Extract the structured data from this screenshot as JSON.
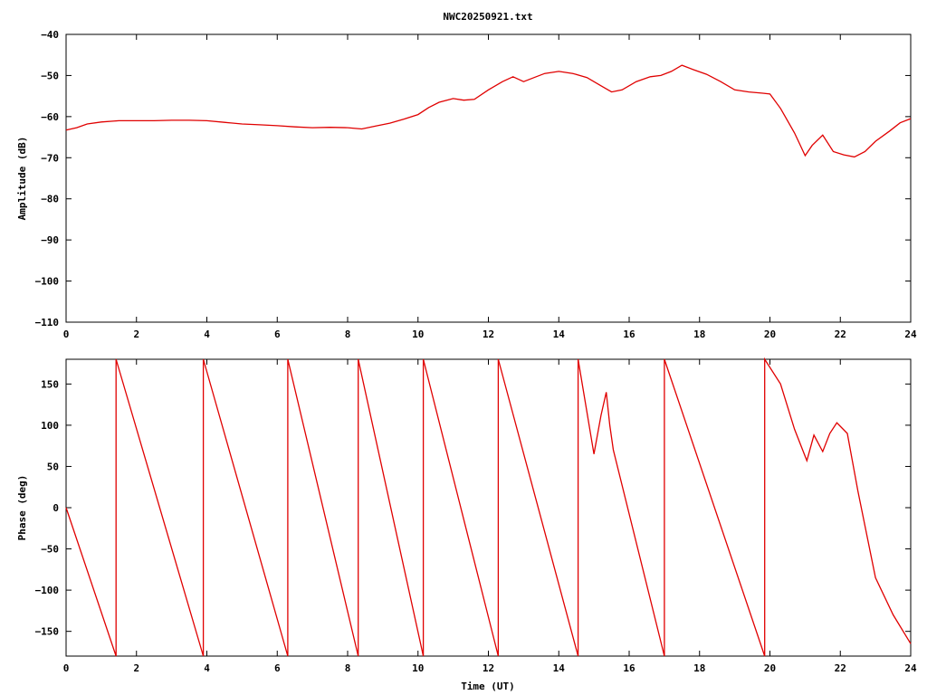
{
  "chart_data": [
    {
      "type": "line",
      "title": "NWC20250921.txt",
      "xlabel": "",
      "ylabel": "Amplitude (dB)",
      "xlim": [
        0,
        24
      ],
      "ylim": [
        -110,
        -40
      ],
      "xticks": [
        "0",
        "2",
        "4",
        "6",
        "8",
        "10",
        "12",
        "14",
        "16",
        "18",
        "20",
        "22",
        "24"
      ],
      "yticks": [
        "-40",
        "-50",
        "-60",
        "-70",
        "-80",
        "-90",
        "-100",
        "-110"
      ],
      "grid": false,
      "series": [
        {
          "color": "#e00000",
          "x": [
            0,
            0.3,
            0.6,
            1.0,
            1.5,
            2.0,
            2.5,
            3.0,
            3.5,
            4.0,
            4.5,
            5.0,
            5.5,
            6.0,
            6.5,
            7.0,
            7.5,
            8.0,
            8.4,
            8.8,
            9.2,
            9.6,
            10.0,
            10.3,
            10.6,
            11.0,
            11.3,
            11.6,
            12.0,
            12.4,
            12.7,
            13.0,
            13.3,
            13.6,
            14.0,
            14.4,
            14.8,
            15.2,
            15.5,
            15.8,
            16.2,
            16.6,
            16.9,
            17.2,
            17.5,
            17.8,
            18.2,
            18.6,
            19.0,
            19.4,
            19.8,
            20.0,
            20.3,
            20.7,
            21.0,
            21.2,
            21.5,
            21.8,
            22.1,
            22.4,
            22.7,
            23.0,
            23.4,
            23.7,
            24.0
          ],
          "y": [
            -63.3,
            -62.7,
            -61.8,
            -61.3,
            -61.0,
            -61.0,
            -61.0,
            -60.9,
            -60.9,
            -61.0,
            -61.4,
            -61.8,
            -62.0,
            -62.2,
            -62.5,
            -62.7,
            -62.6,
            -62.7,
            -63.0,
            -62.3,
            -61.6,
            -60.6,
            -59.5,
            -57.8,
            -56.5,
            -55.6,
            -56.0,
            -55.8,
            -53.5,
            -51.5,
            -50.3,
            -51.5,
            -50.5,
            -49.5,
            -49.0,
            -49.5,
            -50.5,
            -52.5,
            -54.0,
            -53.5,
            -51.5,
            -50.3,
            -50.0,
            -49.0,
            -47.5,
            -48.5,
            -49.7,
            -51.5,
            -53.5,
            -54.0,
            -54.3,
            -54.5,
            -58.0,
            -64.0,
            -69.5,
            -67.0,
            -64.5,
            -68.5,
            -69.3,
            -69.8,
            -68.5,
            -66.0,
            -63.5,
            -61.5,
            -60.5
          ]
        }
      ]
    },
    {
      "type": "line",
      "title": "",
      "xlabel": "Time (UT)",
      "ylabel": "Phase (deg)",
      "xlim": [
        0,
        24
      ],
      "ylim": [
        -180,
        180
      ],
      "xticks": [
        "0",
        "2",
        "4",
        "6",
        "8",
        "10",
        "12",
        "14",
        "16",
        "18",
        "20",
        "22",
        "24"
      ],
      "yticks": [
        "150",
        "100",
        "50",
        "0",
        "-50",
        "-100",
        "-150"
      ],
      "grid": false,
      "series": [
        {
          "color": "#e00000",
          "x": [
            0,
            1.42,
            1.42,
            3.9,
            3.9,
            6.3,
            6.3,
            8.3,
            8.3,
            10.15,
            10.15,
            12.28,
            12.28,
            14.55,
            14.55,
            15.0,
            15.2,
            15.35,
            15.45,
            15.55,
            17.0,
            17.0,
            19.85,
            19.85,
            20.3,
            20.7,
            21.05,
            21.25,
            21.5,
            21.7,
            21.9,
            22.2,
            22.5,
            23.0,
            23.5,
            24.0
          ],
          "y": [
            0,
            -180,
            180,
            -180,
            180,
            -180,
            180,
            -180,
            180,
            -180,
            180,
            -180,
            180,
            -180,
            180,
            65,
            112,
            140,
            100,
            70,
            -180,
            180,
            -180,
            180,
            150,
            95,
            57,
            88,
            68,
            90,
            103,
            90,
            20,
            -85,
            -130,
            -165
          ]
        }
      ]
    }
  ]
}
